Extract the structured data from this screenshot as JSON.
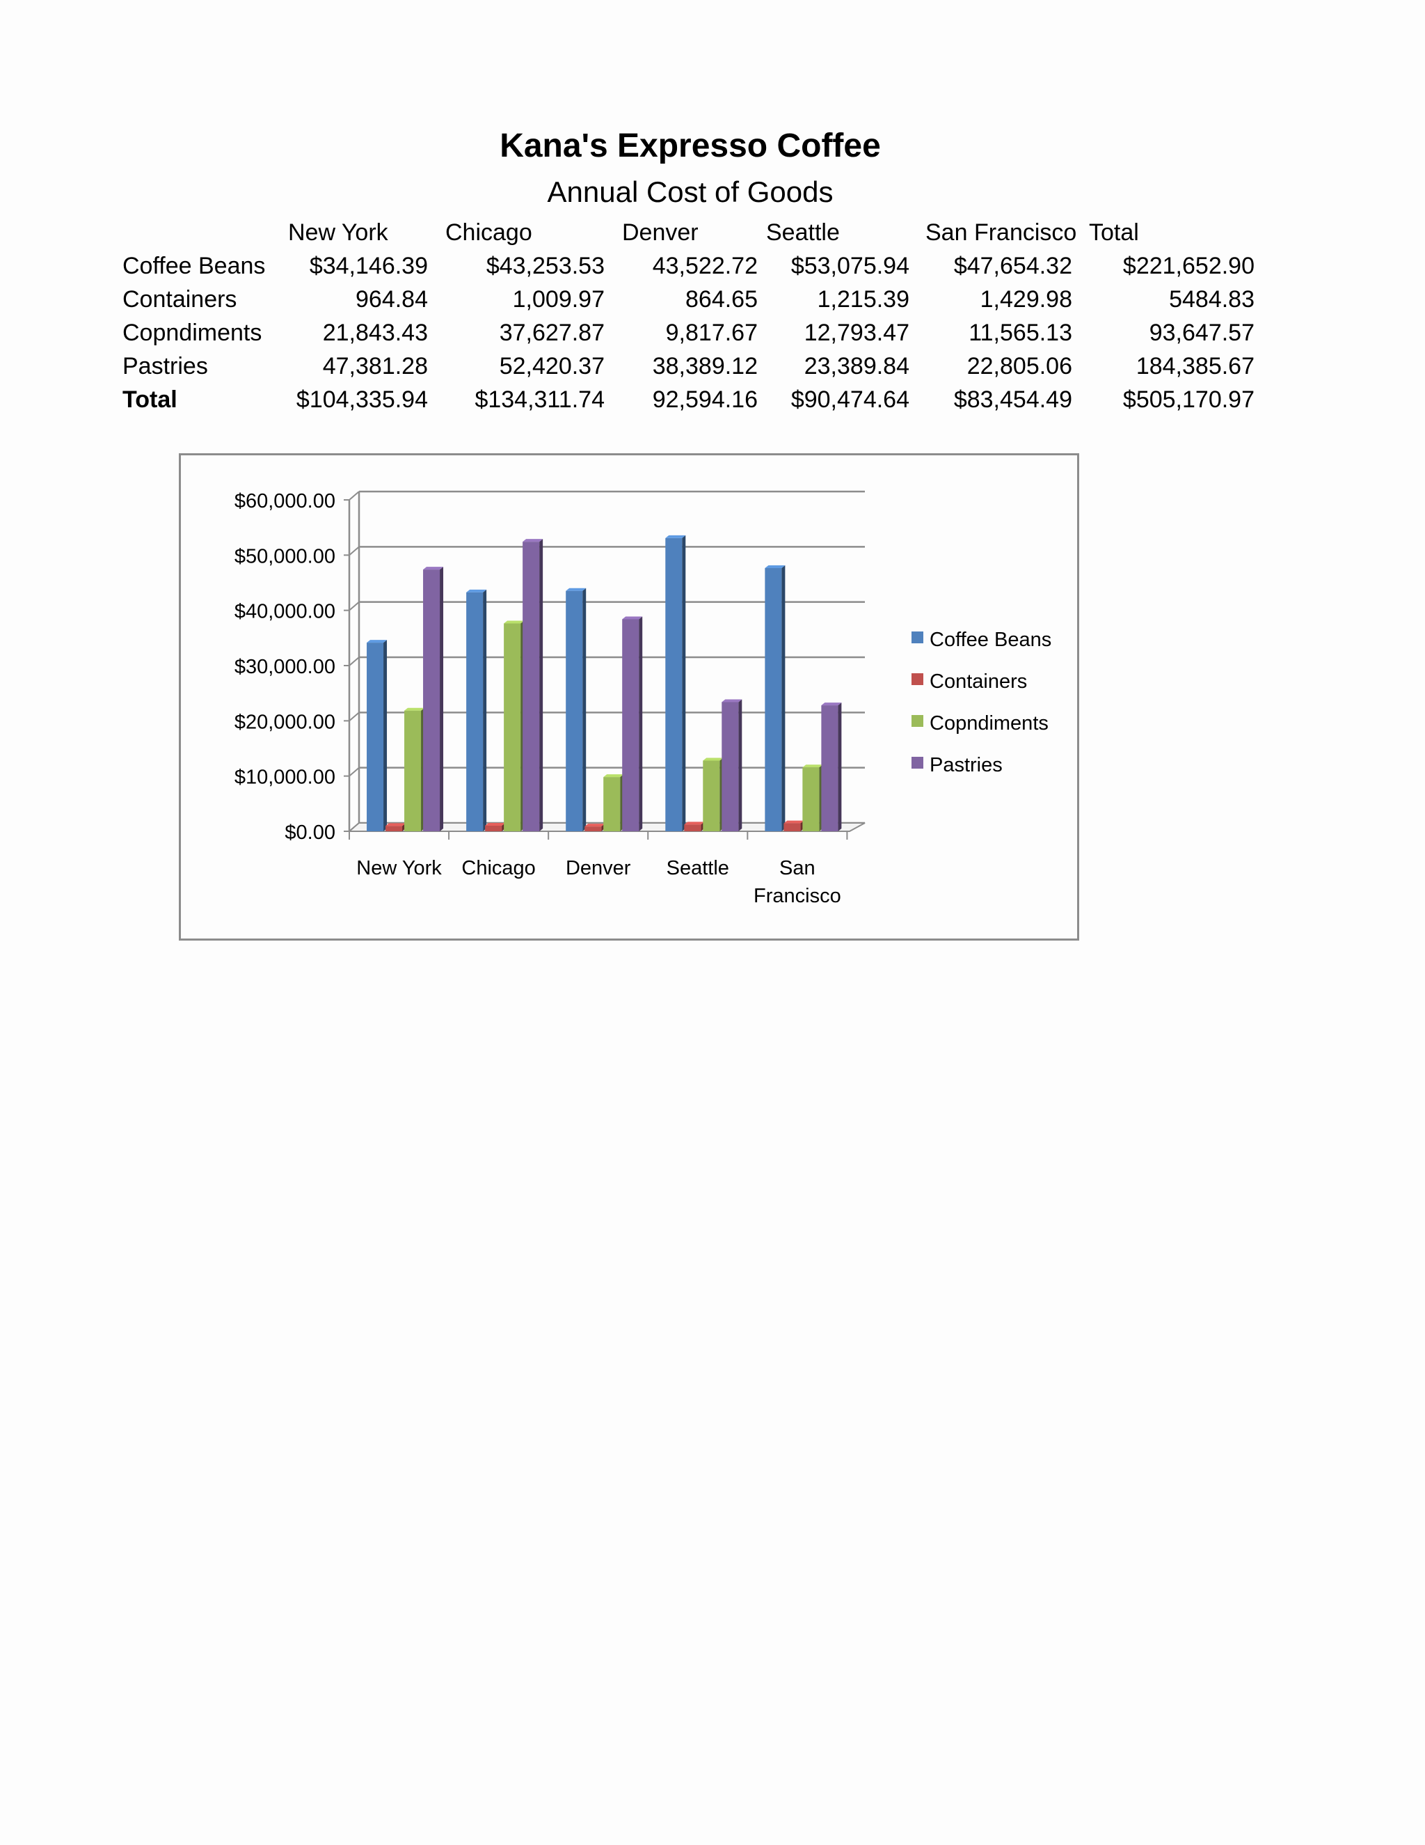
{
  "title": "Kana's Expresso Coffee",
  "subtitle": "Annual Cost of Goods",
  "table": {
    "columns": [
      "New York",
      "Chicago",
      "Denver",
      "Seattle",
      "San Francisco",
      "Total"
    ],
    "rows": [
      {
        "label": "Coffee Beans",
        "values": [
          "$34,146.39",
          "$43,253.53",
          "43,522.72",
          "$53,075.94",
          "$47,654.32",
          "$221,652.90"
        ]
      },
      {
        "label": "Containers",
        "values": [
          "964.84",
          "1,009.97",
          "864.65",
          "1,215.39",
          "1,429.98",
          "5484.83"
        ]
      },
      {
        "label": "Copndiments",
        "values": [
          "21,843.43",
          "37,627.87",
          "9,817.67",
          "12,793.47",
          "11,565.13",
          "93,647.57"
        ]
      },
      {
        "label": "Pastries",
        "values": [
          "47,381.28",
          "52,420.37",
          "38,389.12",
          "23,389.84",
          "22,805.06",
          "184,385.67"
        ]
      },
      {
        "label": "Total",
        "values": [
          "$104,335.94",
          "$134,311.74",
          "92,594.16",
          "$90,474.64",
          "$83,454.49",
          "$505,170.97"
        ]
      }
    ]
  },
  "chart_data": {
    "type": "bar",
    "style": "3d-clustered-column",
    "title": "",
    "xlabel": "",
    "ylabel": "",
    "categories": [
      [
        "New York"
      ],
      [
        "Chicago"
      ],
      [
        "Denver"
      ],
      [
        "Seattle"
      ],
      [
        "San",
        "Francisco"
      ]
    ],
    "series": [
      {
        "name": "Coffee Beans",
        "values": [
          34146.39,
          43253.53,
          43522.72,
          53075.94,
          47654.32
        ],
        "color": "#4f81bd"
      },
      {
        "name": "Containers",
        "values": [
          964.84,
          1009.97,
          864.65,
          1215.39,
          1429.98
        ],
        "color": "#c0504d"
      },
      {
        "name": "Copndiments",
        "values": [
          21843.43,
          37627.87,
          9817.67,
          12793.47,
          11565.13
        ],
        "color": "#9bbb59"
      },
      {
        "name": "Pastries",
        "values": [
          47381.28,
          52420.37,
          38389.12,
          23389.84,
          22805.06
        ],
        "color": "#8064a2"
      }
    ],
    "ylim": [
      0,
      60000
    ],
    "yticks": [
      0,
      10000,
      20000,
      30000,
      40000,
      50000,
      60000
    ],
    "ytick_labels": [
      "$0.00",
      "$10,000.00",
      "$20,000.00",
      "$30,000.00",
      "$40,000.00",
      "$50,000.00",
      "$60,000.00"
    ],
    "grid": true,
    "legend_position": "right"
  }
}
